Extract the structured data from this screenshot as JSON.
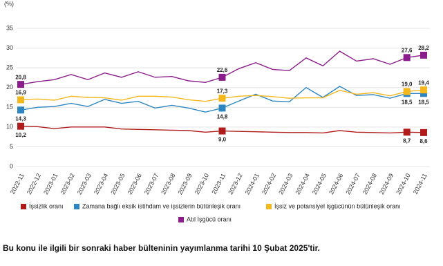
{
  "chart_data": {
    "type": "line",
    "y_label": "(%)",
    "categories": [
      "2022-11",
      "2022-12",
      "2023-01",
      "2023-02",
      "2023-03",
      "2023-04",
      "2023-05",
      "2023-06",
      "2023-07",
      "2023-08",
      "2023-09",
      "2023-10",
      "2023-11",
      "2023-12",
      "2024-01",
      "2024-02",
      "2024-03",
      "2024-04",
      "2024-05",
      "2024-06",
      "2024-07",
      "2024-08",
      "2024-09",
      "2024-10",
      "2024-11"
    ],
    "ylim": [
      0,
      35
    ],
    "yticks": [
      0,
      5,
      10,
      15,
      20,
      25,
      30,
      35
    ],
    "grid": true,
    "series": [
      {
        "name": "İşsizlik oranı",
        "color": "#b01c1c",
        "values": [
          10.2,
          10.1,
          9.6,
          10.0,
          10.0,
          10.0,
          9.5,
          9.4,
          9.3,
          9.2,
          9.1,
          8.7,
          9.0,
          8.9,
          8.8,
          8.7,
          8.6,
          8.6,
          8.5,
          9.1,
          8.7,
          8.6,
          8.5,
          8.7,
          8.6
        ],
        "value_labels": [
          "10,2",
          null,
          null,
          null,
          null,
          null,
          null,
          null,
          null,
          null,
          null,
          null,
          "9,0",
          null,
          null,
          null,
          null,
          null,
          null,
          null,
          null,
          null,
          null,
          "8,7",
          "8,6"
        ]
      },
      {
        "name": "Zamana bağlı eksik istihdam ve işsizlerin bütünleşik oranı",
        "color": "#2e86c1",
        "values": [
          14.3,
          15.0,
          15.2,
          16.0,
          15.2,
          17.0,
          16.0,
          16.5,
          14.8,
          15.5,
          14.8,
          13.8,
          14.8,
          16.6,
          18.3,
          16.6,
          16.4,
          20.0,
          17.5,
          20.3,
          18.0,
          18.2,
          17.3,
          18.5,
          18.5
        ],
        "value_labels": [
          "14,3",
          null,
          null,
          null,
          null,
          null,
          null,
          null,
          null,
          null,
          null,
          null,
          "14,8",
          null,
          null,
          null,
          null,
          null,
          null,
          null,
          null,
          null,
          null,
          "18,5",
          "18,5"
        ]
      },
      {
        "name": "İşsiz ve potansiyel işgücünün bütünleşik oranı",
        "color": "#f5b81c",
        "values": [
          16.9,
          17.1,
          16.8,
          17.8,
          17.5,
          17.4,
          16.8,
          17.8,
          17.8,
          17.6,
          16.9,
          16.5,
          17.3,
          17.8,
          18.0,
          17.7,
          17.3,
          17.4,
          17.4,
          19.3,
          18.3,
          18.7,
          17.9,
          19.0,
          19.4
        ],
        "value_labels": [
          "16,9",
          null,
          null,
          null,
          null,
          null,
          null,
          null,
          null,
          null,
          null,
          null,
          "17,3",
          null,
          null,
          null,
          null,
          null,
          null,
          null,
          null,
          null,
          null,
          "19,0",
          "19,4"
        ]
      },
      {
        "name": "Atıl İşgücü oranı",
        "color": "#8b1c8b",
        "values": [
          20.8,
          21.5,
          22.0,
          23.3,
          22.0,
          23.7,
          22.6,
          24.0,
          22.6,
          22.8,
          21.7,
          21.3,
          22.6,
          24.8,
          26.3,
          24.6,
          24.3,
          27.5,
          25.5,
          29.2,
          26.7,
          27.3,
          25.9,
          27.6,
          28.2
        ],
        "value_labels": [
          "20,8",
          null,
          null,
          null,
          null,
          null,
          null,
          null,
          null,
          null,
          null,
          null,
          "22,6",
          null,
          null,
          null,
          null,
          null,
          null,
          null,
          null,
          null,
          null,
          "27,6",
          "28,2"
        ]
      }
    ]
  },
  "footer_note": "Bu konu ile ilgili bir sonraki haber bülteninin yayımlanma tarihi 10 Şubat 2025'tir."
}
